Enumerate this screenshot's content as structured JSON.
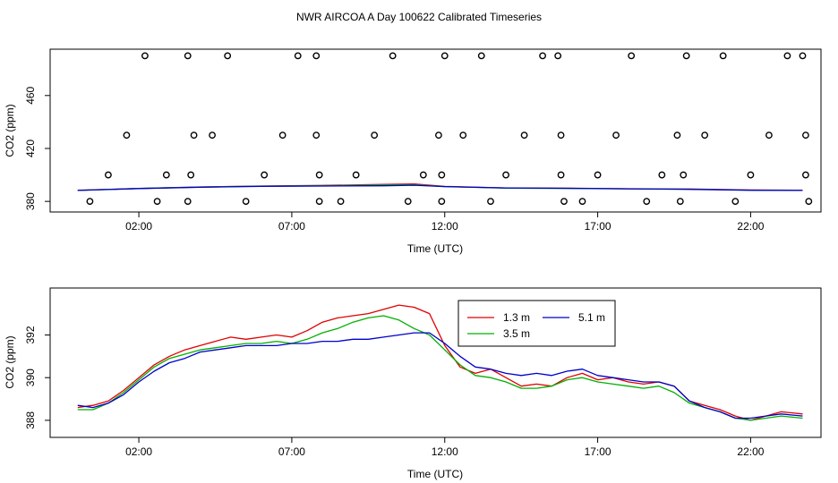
{
  "figure": {
    "title": "NWR AIRCOA A  Day 100622  Calibrated Timeseries"
  },
  "chart_data": [
    {
      "type": "scatter",
      "title": "",
      "xlabel": "Time (UTC)",
      "ylabel": "CO2 (ppm)",
      "xlim": [
        -0.9,
        24.3
      ],
      "ylim": [
        372,
        495
      ],
      "xticks": [
        2,
        7,
        12,
        17,
        22
      ],
      "xtick_labels": [
        "02:00",
        "07:00",
        "12:00",
        "17:00",
        "22:00"
      ],
      "yticks": [
        380,
        420,
        460
      ],
      "ytick_labels": [
        "380",
        "420",
        "460"
      ],
      "grid": false,
      "colors": {
        "1.3 m": "#e00000",
        "3.5 m": "#00b000",
        "5.1 m": "#0000cc"
      },
      "points": {
        "x": [
          0.4,
          1.0,
          1.6,
          2.2,
          2.9,
          2.6,
          3.6,
          3.7,
          3.8,
          3.6,
          4.4,
          4.9,
          5.5,
          6.1,
          6.7,
          7.2,
          7.8,
          7.8,
          7.9,
          7.9,
          8.6,
          9.1,
          9.7,
          10.3,
          10.8,
          11.3,
          11.9,
          11.9,
          12.0,
          11.8,
          12.6,
          13.2,
          13.5,
          14.0,
          14.6,
          15.2,
          15.7,
          15.8,
          15.8,
          15.9,
          16.5,
          17.0,
          17.6,
          18.1,
          18.6,
          19.1,
          19.7,
          19.8,
          19.9,
          19.6,
          20.5,
          21.1,
          21.5,
          22.0,
          22.6,
          23.2,
          23.7,
          23.8,
          23.8,
          23.9
        ],
        "y": [
          380,
          400,
          430,
          490,
          400,
          380,
          380,
          400,
          430,
          490,
          430,
          490,
          380,
          400,
          430,
          490,
          490,
          430,
          400,
          380,
          380,
          400,
          430,
          490,
          380,
          400,
          380,
          400,
          490,
          430,
          430,
          490,
          380,
          400,
          430,
          490,
          490,
          430,
          400,
          380,
          380,
          400,
          430,
          490,
          380,
          400,
          380,
          400,
          490,
          430,
          430,
          490,
          380,
          400,
          430,
          490,
          490,
          430,
          400,
          380
        ]
      },
      "series": [
        {
          "name": "1.3 m",
          "x": [
            0,
            2,
            4,
            6,
            8,
            10,
            11,
            12,
            14,
            16,
            18,
            20,
            22,
            23.7
          ],
          "values": [
            388.4,
            389.8,
            390.9,
            391.6,
            392.1,
            392.8,
            393.2,
            391.3,
            390.2,
            390.0,
            389.6,
            389.4,
            388.6,
            388.4
          ]
        },
        {
          "name": "3.5 m",
          "x": [
            0,
            2,
            4,
            6,
            8,
            10,
            11,
            12,
            14,
            16,
            18,
            20,
            22,
            23.7
          ],
          "values": [
            388.3,
            389.8,
            390.8,
            391.5,
            391.8,
            392.4,
            392.6,
            391.2,
            390.0,
            389.8,
            389.5,
            389.2,
            388.5,
            388.3
          ]
        },
        {
          "name": "5.1 m",
          "x": [
            0,
            2,
            4,
            6,
            8,
            10,
            11,
            12,
            14,
            16,
            18,
            20,
            22,
            23.7
          ],
          "values": [
            388.3,
            389.7,
            390.7,
            391.4,
            391.6,
            391.8,
            392.2,
            391.2,
            390.2,
            389.9,
            389.5,
            389.1,
            388.4,
            388.3
          ]
        }
      ]
    },
    {
      "type": "line",
      "title": "",
      "xlabel": "Time (UTC)",
      "ylabel": "CO2 (ppm)",
      "xlim": [
        -0.9,
        24.3
      ],
      "ylim": [
        387.2,
        394.2
      ],
      "xticks": [
        2,
        7,
        12,
        17,
        22
      ],
      "xtick_labels": [
        "02:00",
        "07:00",
        "12:00",
        "17:00",
        "22:00"
      ],
      "yticks": [
        388,
        390,
        392
      ],
      "ytick_labels": [
        "388",
        "390",
        "392"
      ],
      "grid": false,
      "legend": {
        "placement": "top-center",
        "entries": [
          "1.3 m",
          "3.5 m",
          "5.1 m"
        ]
      },
      "series": [
        {
          "name": "1.3 m",
          "color": "#e00000",
          "x": [
            0,
            0.5,
            1,
            1.5,
            2,
            2.5,
            3,
            3.5,
            4,
            4.5,
            5,
            5.5,
            6,
            6.5,
            7,
            7.5,
            8,
            8.5,
            9,
            9.5,
            10,
            10.5,
            11,
            11.5,
            12,
            12.5,
            13,
            13.5,
            14,
            14.5,
            15,
            15.5,
            16,
            16.5,
            17,
            17.5,
            18,
            18.5,
            19,
            19.5,
            20,
            20.5,
            21,
            21.5,
            22,
            22.5,
            23,
            23.7
          ],
          "values": [
            388.6,
            388.7,
            388.9,
            389.4,
            390.0,
            390.6,
            391.0,
            391.3,
            391.5,
            391.7,
            391.9,
            391.8,
            391.9,
            392.0,
            391.9,
            392.2,
            392.6,
            392.8,
            392.9,
            393.0,
            393.2,
            393.4,
            393.3,
            393.0,
            391.5,
            390.5,
            390.2,
            390.4,
            390.0,
            389.6,
            389.7,
            389.6,
            390.0,
            390.2,
            389.9,
            390.0,
            389.8,
            389.7,
            389.8,
            389.6,
            388.9,
            388.7,
            388.5,
            388.2,
            388.0,
            388.2,
            388.4,
            388.3
          ]
        },
        {
          "name": "3.5 m",
          "color": "#00b000",
          "x": [
            0,
            0.5,
            1,
            1.5,
            2,
            2.5,
            3,
            3.5,
            4,
            4.5,
            5,
            5.5,
            6,
            6.5,
            7,
            7.5,
            8,
            8.5,
            9,
            9.5,
            10,
            10.5,
            11,
            11.5,
            12,
            12.5,
            13,
            13.5,
            14,
            14.5,
            15,
            15.5,
            16,
            16.5,
            17,
            17.5,
            18,
            18.5,
            19,
            19.5,
            20,
            20.5,
            21,
            21.5,
            22,
            22.5,
            23,
            23.7
          ],
          "values": [
            388.5,
            388.5,
            388.8,
            389.3,
            389.9,
            390.5,
            390.9,
            391.1,
            391.3,
            391.4,
            391.5,
            391.6,
            391.6,
            391.7,
            391.6,
            391.8,
            392.1,
            392.3,
            392.6,
            392.8,
            392.9,
            392.7,
            392.3,
            392.0,
            391.3,
            390.6,
            390.1,
            390.0,
            389.8,
            389.5,
            389.5,
            389.6,
            389.9,
            390.0,
            389.8,
            389.7,
            389.6,
            389.5,
            389.6,
            389.3,
            388.8,
            388.6,
            388.4,
            388.1,
            388.0,
            388.1,
            388.2,
            388.1
          ]
        },
        {
          "name": "5.1 m",
          "color": "#0000cc",
          "x": [
            0,
            0.5,
            1,
            1.5,
            2,
            2.5,
            3,
            3.5,
            4,
            4.5,
            5,
            5.5,
            6,
            6.5,
            7,
            7.5,
            8,
            8.5,
            9,
            9.5,
            10,
            10.5,
            11,
            11.5,
            12,
            12.5,
            13,
            13.5,
            14,
            14.5,
            15,
            15.5,
            16,
            16.5,
            17,
            17.5,
            18,
            18.5,
            19,
            19.5,
            20,
            20.5,
            21,
            21.5,
            22,
            22.5,
            23,
            23.7
          ],
          "values": [
            388.7,
            388.6,
            388.8,
            389.2,
            389.8,
            390.3,
            390.7,
            390.9,
            391.2,
            391.3,
            391.4,
            391.5,
            391.5,
            391.5,
            391.6,
            391.6,
            391.7,
            391.7,
            391.8,
            391.8,
            391.9,
            392.0,
            392.1,
            392.1,
            391.6,
            391.0,
            390.5,
            390.4,
            390.2,
            390.1,
            390.2,
            390.1,
            390.3,
            390.4,
            390.1,
            390.0,
            389.9,
            389.8,
            389.8,
            389.6,
            388.9,
            388.6,
            388.4,
            388.1,
            388.1,
            388.2,
            388.3,
            388.2
          ]
        }
      ]
    }
  ]
}
